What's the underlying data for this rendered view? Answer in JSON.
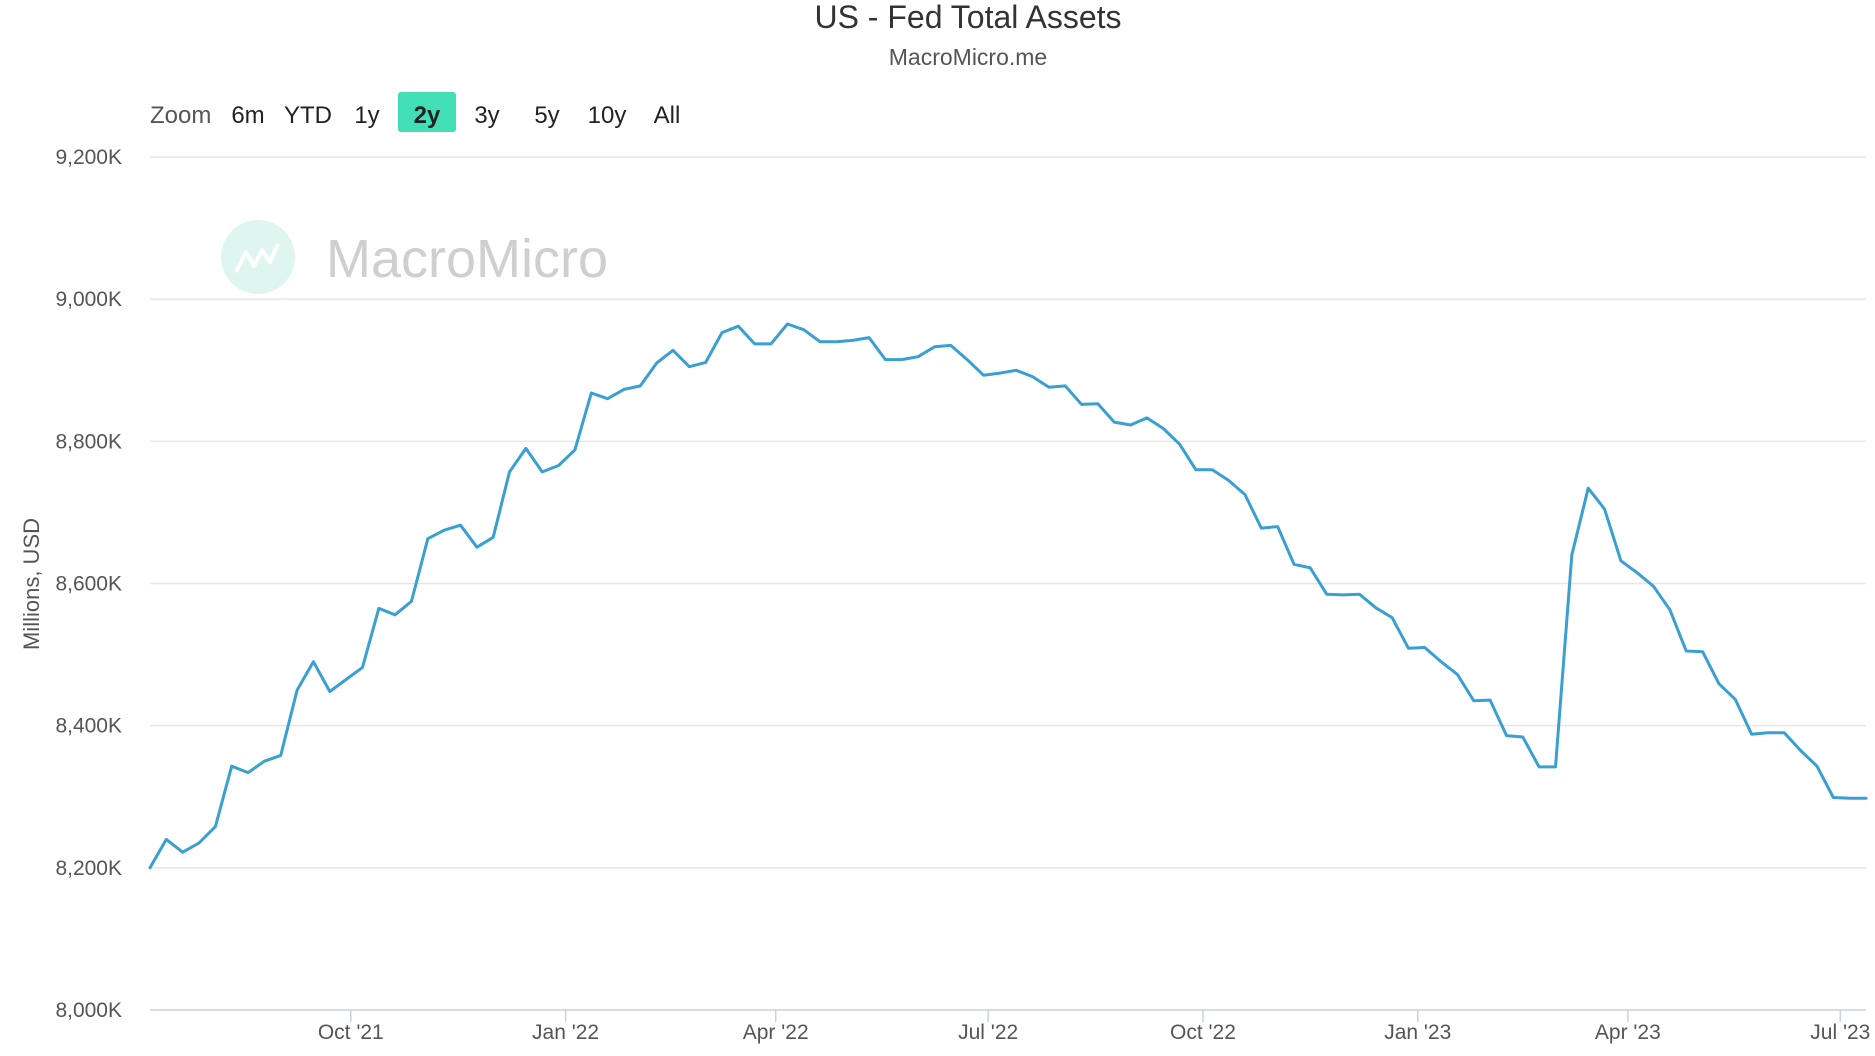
{
  "chart_data": {
    "type": "line",
    "title": "US - Fed Total Assets",
    "subtitle": "MacroMicro.me",
    "ylabel": "Millions, USD",
    "xlabel": "",
    "ylim": [
      8000,
      9200
    ],
    "yticks": [
      8000,
      8200,
      8400,
      8600,
      8800,
      9000,
      9200
    ],
    "ytick_labels": [
      "8,000K",
      "8,200K",
      "8,400K",
      "8,600K",
      "8,800K",
      "9,000K",
      "9,200K"
    ],
    "xlim": [
      "2021-07-07",
      "2023-07-12"
    ],
    "xticks": [
      {
        "date": "2021-10-01",
        "label": "Oct '21"
      },
      {
        "date": "2022-01-01",
        "label": "Jan '22"
      },
      {
        "date": "2022-04-01",
        "label": "Apr '22"
      },
      {
        "date": "2022-07-01",
        "label": "Jul '22"
      },
      {
        "date": "2022-10-01",
        "label": "Oct '22"
      },
      {
        "date": "2023-01-01",
        "label": "Jan '23"
      },
      {
        "date": "2023-04-01",
        "label": "Apr '23"
      },
      {
        "date": "2023-07-01",
        "label": "Jul '23"
      }
    ],
    "grid": true,
    "line_color": "#3a9fd1",
    "series": [
      {
        "x": [
          "2021-07-07",
          "2021-07-14",
          "2021-07-21",
          "2021-07-28",
          "2021-08-04",
          "2021-08-11",
          "2021-08-18",
          "2021-08-25",
          "2021-09-01",
          "2021-09-08",
          "2021-09-15",
          "2021-09-22",
          "2021-09-29",
          "2021-10-06",
          "2021-10-13",
          "2021-10-20",
          "2021-10-27",
          "2021-11-03",
          "2021-11-10",
          "2021-11-17",
          "2021-11-24",
          "2021-12-01",
          "2021-12-08",
          "2021-12-15",
          "2021-12-22",
          "2021-12-29",
          "2022-01-05",
          "2022-01-12",
          "2022-01-19",
          "2022-01-26",
          "2022-02-02",
          "2022-02-09",
          "2022-02-16",
          "2022-02-23",
          "2022-03-02",
          "2022-03-09",
          "2022-03-16",
          "2022-03-23",
          "2022-03-30",
          "2022-04-06",
          "2022-04-13",
          "2022-04-20",
          "2022-04-27",
          "2022-05-04",
          "2022-05-11",
          "2022-05-18",
          "2022-05-25",
          "2022-06-01",
          "2022-06-08",
          "2022-06-15",
          "2022-06-22",
          "2022-06-29",
          "2022-07-06",
          "2022-07-13",
          "2022-07-20",
          "2022-07-27",
          "2022-08-03",
          "2022-08-10",
          "2022-08-17",
          "2022-08-24",
          "2022-08-31",
          "2022-09-07",
          "2022-09-14",
          "2022-09-21",
          "2022-09-28",
          "2022-10-05",
          "2022-10-12",
          "2022-10-19",
          "2022-10-26",
          "2022-11-02",
          "2022-11-09",
          "2022-11-16",
          "2022-11-23",
          "2022-11-30",
          "2022-12-07",
          "2022-12-14",
          "2022-12-21",
          "2022-12-28",
          "2023-01-04",
          "2023-01-11",
          "2023-01-18",
          "2023-01-25",
          "2023-02-01",
          "2023-02-08",
          "2023-02-15",
          "2023-02-22",
          "2023-03-01",
          "2023-03-08",
          "2023-03-15",
          "2023-03-22",
          "2023-03-29",
          "2023-04-05",
          "2023-04-12",
          "2023-04-19",
          "2023-04-26",
          "2023-05-03",
          "2023-05-10",
          "2023-05-17",
          "2023-05-24",
          "2023-05-31",
          "2023-06-07",
          "2023-06-14",
          "2023-06-21",
          "2023-06-28",
          "2023-07-05",
          "2023-07-12"
        ],
        "values": [
          8200,
          8240,
          8222,
          8235,
          8258,
          8343,
          8334,
          8350,
          8358,
          8450,
          8490,
          8448,
          8465,
          8482,
          8565,
          8556,
          8575,
          8663,
          8675,
          8682,
          8651,
          8665,
          8757,
          8790,
          8757,
          8766,
          8788,
          8868,
          8860,
          8873,
          8878,
          8910,
          8928,
          8905,
          8911,
          8953,
          8962,
          8937,
          8937,
          8965,
          8957,
          8940,
          8940,
          8942,
          8946,
          8915,
          8915,
          8919,
          8933,
          8935,
          8915,
          8893,
          8896,
          8900,
          8891,
          8876,
          8878,
          8852,
          8853,
          8827,
          8823,
          8833,
          8818,
          8796,
          8760,
          8760,
          8745,
          8725,
          8678,
          8680,
          8627,
          8622,
          8585,
          8584,
          8585,
          8566,
          8552,
          8509,
          8510,
          8490,
          8472,
          8435,
          8436,
          8386,
          8384,
          8342,
          8342,
          8640,
          8734,
          8705,
          8632,
          8615,
          8596,
          8563,
          8505,
          8504,
          8459,
          8437,
          8388,
          8390,
          8390,
          8365,
          8343,
          8299,
          8298,
          8298
        ]
      }
    ]
  },
  "zoom": {
    "label": "Zoom",
    "buttons": [
      "6m",
      "YTD",
      "1y",
      "2y",
      "3y",
      "5y",
      "10y",
      "All"
    ],
    "selected": "2y",
    "selected_color": "#40dfb6"
  },
  "watermark": {
    "text": "MacroMicro",
    "logo_color": "#dff5ef"
  }
}
